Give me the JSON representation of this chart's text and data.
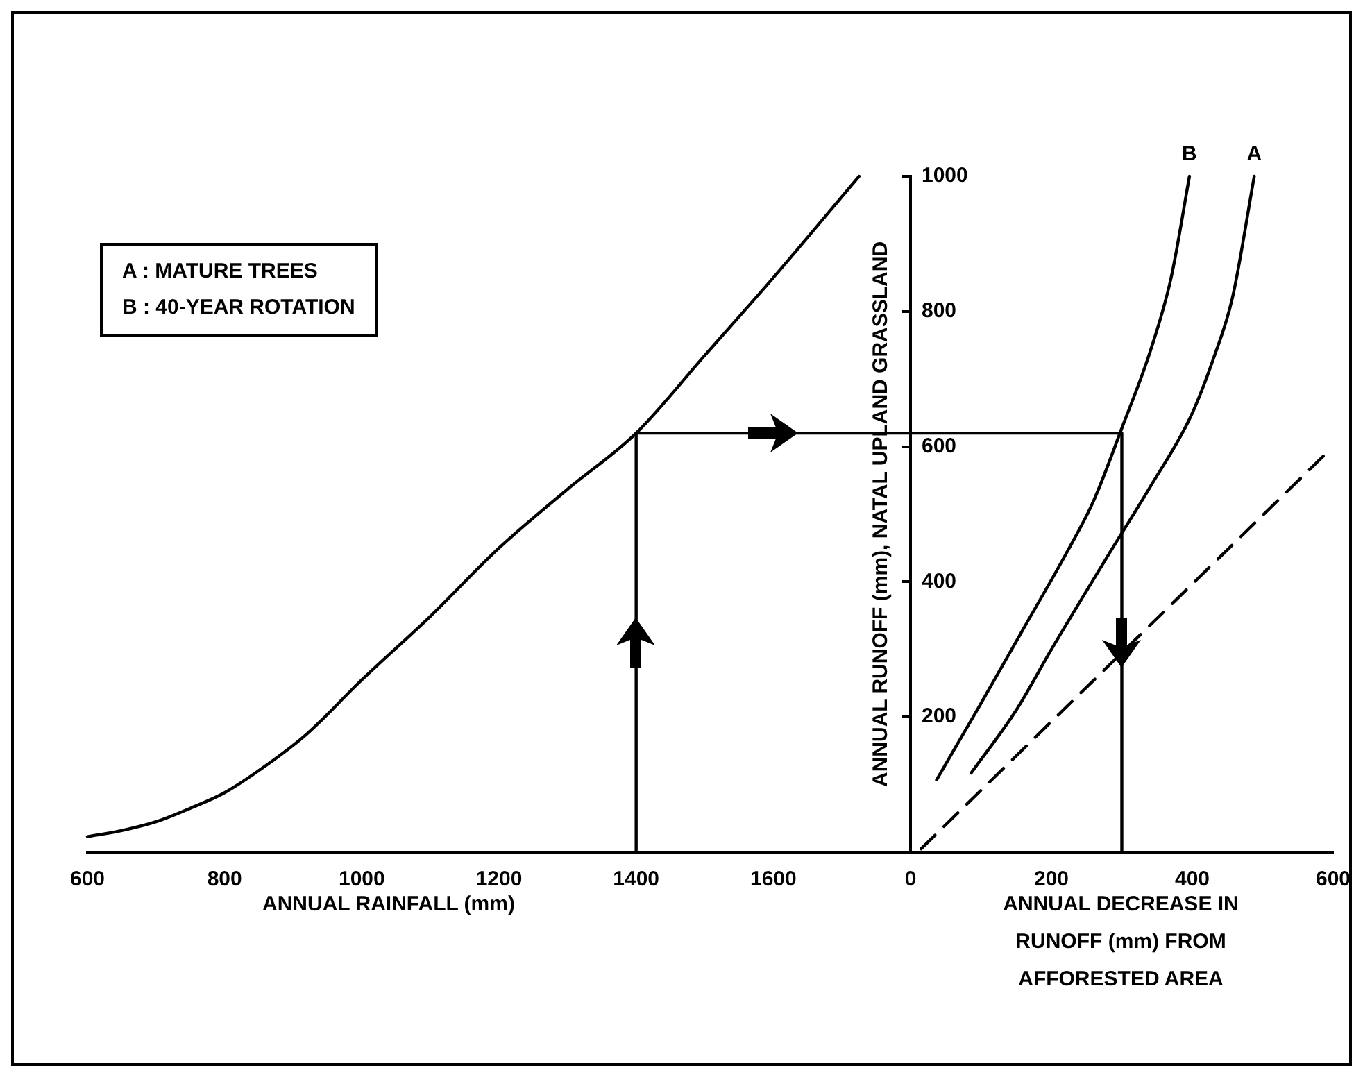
{
  "chart_data": [
    {
      "type": "line",
      "xlabel": "ANNUAL RAINFALL (mm)",
      "xlim": [
        600,
        1800
      ],
      "xticks": [
        600,
        800,
        1000,
        1200,
        1400,
        1600
      ],
      "ylim": [
        0,
        1000
      ],
      "tick_labels": "x",
      "marker": "none",
      "line_style": "solid",
      "annotations": [
        "A : MATURE TREES",
        "B : 40-YEAR ROTATION"
      ],
      "series": [
        {
          "color": "#000000",
          "x": [
            600,
            650,
            700,
            750,
            800,
            860,
            920,
            1000,
            1100,
            1200,
            1300,
            1400,
            1500,
            1600,
            1725
          ],
          "values": [
            23,
            32,
            45,
            65,
            88,
            128,
            175,
            255,
            349,
            450,
            537,
            620,
            735,
            850,
            1000
          ]
        },
        {
          "color": "#000000",
          "x": [
            1400,
            1400,
            1800
          ],
          "values": [
            0,
            620,
            620
          ]
        }
      ]
    },
    {
      "type": "line",
      "xlabel": "ANNUAL DECREASE IN RUNOFF (mm) FROM AFFORESTED AREA",
      "ylabel": "ANNUAL RUNOFF (mm), NATAL UPLAND GRASSLAND",
      "xlim": [
        0,
        600
      ],
      "xticks": [
        0,
        200,
        400,
        600
      ],
      "ylim": [
        0,
        1000
      ],
      "yticks": [
        200,
        400,
        600,
        800,
        1000
      ],
      "marker": "none",
      "line_style": "solid",
      "series": [
        {
          "name": "B",
          "color": "#000000",
          "x": [
            37,
            100,
            160,
            220,
            260,
            301,
            340,
            370,
            396
          ],
          "values": [
            107,
            220,
            330,
            440,
            520,
            630,
            740,
            850,
            1000
          ]
        },
        {
          "name": "A",
          "color": "#000000",
          "x": [
            86,
            150,
            200,
            281,
            340,
            398,
            430,
            457,
            488
          ],
          "values": [
            117,
            210,
            300,
            440,
            540,
            645,
            730,
            820,
            1000
          ]
        },
        {
          "color": "#000000",
          "line_style": "dashed",
          "x": [
            15,
            590
          ],
          "values": [
            5,
            590
          ]
        },
        {
          "color": "#000000",
          "x": [
            0,
            300,
            300
          ],
          "values": [
            620,
            620,
            0
          ]
        }
      ]
    }
  ]
}
